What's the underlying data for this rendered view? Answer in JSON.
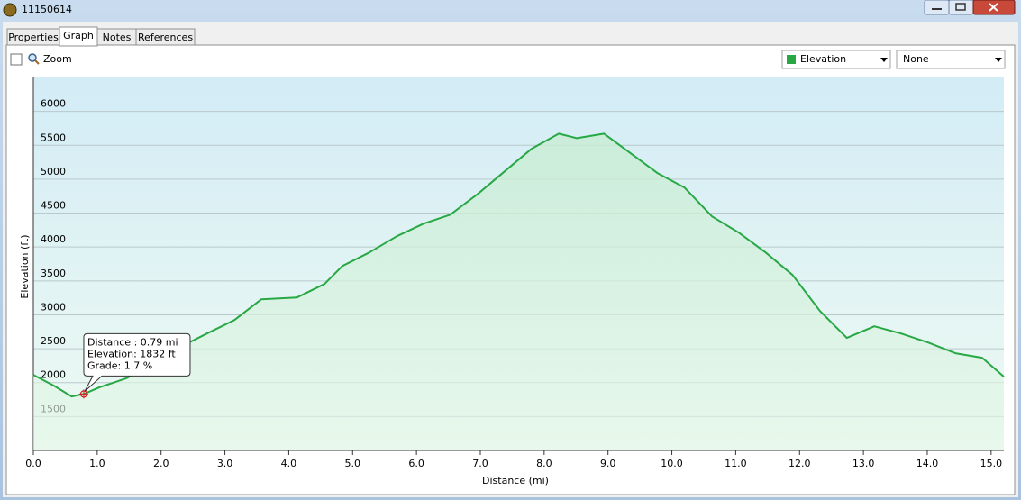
{
  "window": {
    "title": "11150614",
    "tabs": [
      "Properties",
      "Graph",
      "Notes",
      "References"
    ],
    "zoom_label": "Zoom",
    "dropdowns": [
      "Elevation",
      "None"
    ]
  },
  "chart_data": {
    "type": "line",
    "x_label": "Distance  (mi)",
    "y_label": "Elevation (ft)",
    "x": [
      0,
      0.32,
      0.6,
      0.79,
      1.03,
      1.45,
      1.88,
      2.3,
      2.72,
      3.15,
      3.57,
      4.13,
      4.56,
      4.84,
      5.26,
      5.69,
      6.11,
      6.53,
      6.96,
      7.38,
      7.8,
      8.23,
      8.51,
      8.94,
      9.36,
      9.78,
      10.2,
      10.63,
      11.05,
      11.47,
      11.89,
      12.32,
      12.74,
      13.17,
      13.59,
      14.01,
      14.44,
      14.86,
      15.2
    ],
    "series": [
      {
        "name": "Elevation",
        "color": "#27a844",
        "values": [
          2115,
          1955,
          1796,
          1832,
          1929,
          2062,
          2260,
          2526,
          2725,
          2924,
          3229,
          3256,
          3455,
          3720,
          3919,
          4158,
          4344,
          4477,
          4782,
          5114,
          5446,
          5671,
          5605,
          5671,
          5379,
          5087,
          4875,
          4450,
          4211,
          3919,
          3588,
          3057,
          2659,
          2831,
          2725,
          2593,
          2433,
          2367,
          2088
        ]
      }
    ],
    "xlim": [
      0,
      15.2
    ],
    "xticks": [
      {
        "value": 0,
        "label": "0.0"
      },
      {
        "value": 1,
        "label": "1.0"
      },
      {
        "value": 2,
        "label": "2.0"
      },
      {
        "value": 3,
        "label": "3.0"
      },
      {
        "value": 4,
        "label": "4.0"
      },
      {
        "value": 5,
        "label": "5.0"
      },
      {
        "value": 6,
        "label": "6.0"
      },
      {
        "value": 7,
        "label": "7.0"
      },
      {
        "value": 8,
        "label": "8.0"
      },
      {
        "value": 9,
        "label": "9.0"
      },
      {
        "value": 10,
        "label": "10.0"
      },
      {
        "value": 11,
        "label": "11.0"
      },
      {
        "value": 12,
        "label": "12.0"
      },
      {
        "value": 13,
        "label": "13.0"
      },
      {
        "value": 14,
        "label": "14.0"
      },
      {
        "value": 15,
        "label": "15.0"
      }
    ],
    "ylim": [
      1000,
      6500
    ],
    "yticks": [
      1500,
      2000,
      2500,
      3000,
      3500,
      4000,
      4500,
      5000,
      5500,
      6000
    ],
    "grid": true,
    "cursor": {
      "x": 0.79,
      "y": 1832,
      "lines": [
        "Distance : 0.79 mi",
        "Elevation: 1832 ft",
        "Grade: 1.7 %"
      ]
    }
  }
}
